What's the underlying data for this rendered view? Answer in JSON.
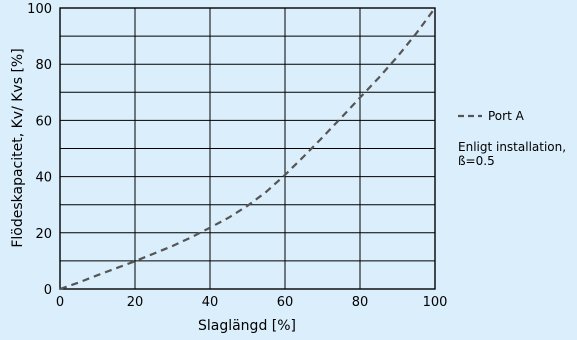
{
  "chart_data": {
    "type": "line",
    "xlabel": "Slaglängd [%]",
    "ylabel": "Flödeskapacitet, Kv/ Kvs [%]",
    "xlim": [
      0,
      100
    ],
    "ylim": [
      0,
      100
    ],
    "x_ticks": [
      0,
      20,
      40,
      60,
      80,
      100
    ],
    "y_ticks": [
      0,
      20,
      40,
      60,
      80,
      100
    ],
    "grid": true,
    "legend_position": "right",
    "series": [
      {
        "name": "Port A",
        "style": "dashed",
        "color": "#555555",
        "x": [
          0,
          5,
          10,
          15,
          20,
          25,
          30,
          35,
          40,
          45,
          50,
          55,
          60,
          65,
          70,
          75,
          80,
          85,
          90,
          95,
          100
        ],
        "y": [
          0,
          2.3,
          4.9,
          7.4,
          9.9,
          12.6,
          15.3,
          18.4,
          21.8,
          25.4,
          29.6,
          34.6,
          40.6,
          47.2,
          54,
          61,
          68.1,
          75.2,
          82.7,
          91,
          100
        ]
      }
    ],
    "note_lines": [
      "Enligt installation,",
      "ß=0.5"
    ]
  }
}
